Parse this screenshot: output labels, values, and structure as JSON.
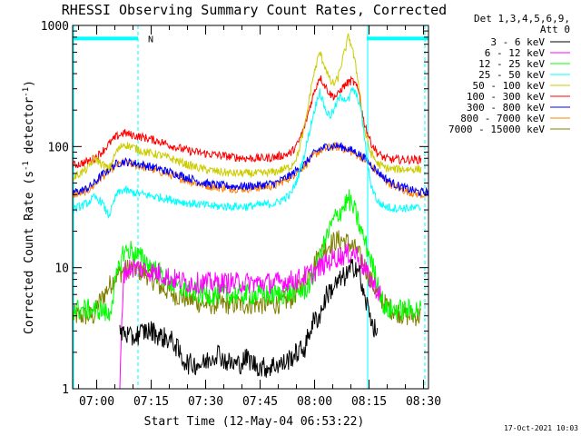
{
  "chart_data": {
    "type": "line",
    "title": "RHESSI Observing Summary Count Rates, Corrected",
    "xlabel": "Start Time (12-May-04 06:53:22)",
    "ylabel_main": "Corrected Count Rate (s",
    "ylabel_sup1": "-1",
    "ylabel_mid": " detector",
    "ylabel_sup2": "-1",
    "ylabel_end": ")",
    "timestamp": "17-Oct-2021 10:03",
    "y_scale": "log",
    "xlim_minutes": [
      0,
      98
    ],
    "ylim": [
      1,
      1000
    ],
    "x_ticks": [
      {
        "label": "07:00",
        "minute": 6.633
      },
      {
        "label": "07:15",
        "minute": 21.633
      },
      {
        "label": "07:30",
        "minute": 36.633
      },
      {
        "label": "07:45",
        "minute": 51.633
      },
      {
        "label": "08:00",
        "minute": 66.633
      },
      {
        "label": "08:15",
        "minute": 81.633
      },
      {
        "label": "08:30",
        "minute": 96.633
      }
    ],
    "y_ticks": [
      {
        "label": "1",
        "value": 1
      },
      {
        "label": "10",
        "value": 10
      },
      {
        "label": "100",
        "value": 100
      },
      {
        "label": "1000",
        "value": 1000
      }
    ],
    "legend_header": [
      "Det 1,3,4,5,6,9,",
      "Att 0"
    ],
    "legend_placement": "right",
    "annotations": {
      "night_bars": [
        [
          0,
          18
        ],
        [
          81,
          98
        ]
      ],
      "night_level": 780,
      "night_color": "#00ffff",
      "saa_marker": "N",
      "saa_marker_minute": 20,
      "dashed_lines_minutes": [
        18,
        97
      ],
      "solid_lines_minutes": [
        0,
        81
      ]
    },
    "series": [
      {
        "name": "3 - 6 keV",
        "color": "#000000",
        "x": [
          13,
          14,
          16,
          18,
          20,
          22,
          24,
          26,
          28,
          30,
          32,
          34,
          36,
          38,
          40,
          42,
          44,
          46,
          48,
          50,
          52,
          54,
          56,
          58,
          60,
          62,
          64,
          66,
          68,
          70,
          72,
          74,
          76,
          77,
          78,
          79,
          80,
          81,
          82,
          83,
          84
        ],
        "y": [
          2.8,
          3.0,
          2.6,
          2.8,
          3.0,
          3.0,
          2.7,
          2.6,
          2.4,
          1.8,
          1.6,
          1.6,
          1.6,
          1.8,
          2.0,
          1.7,
          1.6,
          1.6,
          1.8,
          1.6,
          1.5,
          1.5,
          1.6,
          1.6,
          1.8,
          2.0,
          2.2,
          3.5,
          4.0,
          6.0,
          7.0,
          8.0,
          9.0,
          10.0,
          10.5,
          9.0,
          6.0,
          5.0,
          4.0,
          3.2,
          2.6
        ]
      },
      {
        "name": "6 - 12 keV",
        "color": "#ff00ff",
        "x": [
          13,
          14,
          16,
          18,
          20,
          24,
          28,
          32,
          36,
          40,
          44,
          48,
          52,
          56,
          60,
          62,
          64,
          66,
          68,
          70,
          72,
          74,
          76,
          77,
          78,
          79,
          80,
          82,
          84,
          85
        ],
        "y": [
          1.0,
          9.0,
          10.0,
          10.0,
          9.5,
          9.0,
          8.0,
          7.5,
          7.5,
          7.5,
          7.5,
          7.5,
          7.5,
          7.5,
          7.8,
          8.0,
          8.5,
          9.0,
          10.0,
          11.0,
          12.0,
          12.5,
          13.0,
          13.5,
          13.0,
          12.0,
          10.0,
          8.0,
          6.5,
          6.0
        ]
      },
      {
        "name": "12 - 25 keV",
        "color": "#00ff00",
        "x": [
          0,
          4,
          8,
          10,
          12,
          14,
          16,
          18,
          20,
          22,
          24,
          26,
          28,
          32,
          36,
          40,
          44,
          48,
          52,
          56,
          60,
          64,
          66,
          68,
          70,
          72,
          74,
          76,
          77,
          78,
          79,
          80,
          82,
          84,
          86,
          88,
          92,
          96
        ],
        "y": [
          4.5,
          4.5,
          4.5,
          4.0,
          8.0,
          13.5,
          14.0,
          12.5,
          11.5,
          10.0,
          9.0,
          8.0,
          7.0,
          6.5,
          6.0,
          6.0,
          6.0,
          6.0,
          6.0,
          6.0,
          6.2,
          6.5,
          8.0,
          12.0,
          18.0,
          25.0,
          30.0,
          37.0,
          32.0,
          28.0,
          22.0,
          18.0,
          12.0,
          7.5,
          4.5,
          4.5,
          4.5,
          4.5
        ]
      },
      {
        "name": "25 - 50 keV",
        "color": "#00ffff",
        "x": [
          0,
          2,
          4,
          6,
          8,
          9,
          10,
          11,
          12,
          14,
          16,
          18,
          20,
          24,
          28,
          32,
          36,
          40,
          44,
          48,
          52,
          56,
          60,
          62,
          64,
          66,
          68,
          69,
          70,
          71,
          72,
          73,
          74,
          75,
          76,
          77,
          78,
          79,
          80,
          81,
          82,
          84,
          86,
          88,
          92,
          96
        ],
        "y": [
          30,
          32,
          34,
          38,
          35,
          30,
          27,
          32,
          40,
          44,
          42,
          41,
          40,
          38,
          36,
          34,
          33,
          32,
          32,
          32,
          33,
          34,
          40,
          55,
          90,
          170,
          290,
          230,
          190,
          180,
          200,
          240,
          260,
          250,
          240,
          300,
          270,
          230,
          150,
          80,
          50,
          35,
          32,
          31,
          31,
          31
        ]
      },
      {
        "name": "50 - 100 keV",
        "color": "#cccc00",
        "x": [
          0,
          2,
          4,
          6,
          8,
          10,
          12,
          14,
          16,
          20,
          24,
          28,
          32,
          36,
          40,
          44,
          48,
          52,
          56,
          60,
          62,
          64,
          66,
          68,
          70,
          71,
          72,
          73,
          74,
          75,
          76,
          77,
          78,
          79,
          80,
          82,
          84,
          86,
          88,
          92,
          96
        ],
        "y": [
          55,
          60,
          65,
          80,
          72,
          65,
          90,
          105,
          100,
          90,
          85,
          78,
          70,
          65,
          62,
          60,
          60,
          60,
          62,
          68,
          85,
          150,
          350,
          600,
          420,
          340,
          330,
          360,
          480,
          620,
          820,
          650,
          450,
          300,
          150,
          90,
          72,
          67,
          65,
          65,
          65
        ]
      },
      {
        "name": "100 - 300 keV",
        "color": "#ff0000",
        "x": [
          0,
          2,
          4,
          6,
          8,
          10,
          12,
          14,
          16,
          20,
          24,
          28,
          32,
          36,
          40,
          44,
          48,
          52,
          56,
          60,
          62,
          64,
          66,
          68,
          70,
          71,
          72,
          73,
          74,
          75,
          76,
          77,
          78,
          79,
          80,
          82,
          84,
          86,
          88,
          92,
          96
        ],
        "y": [
          70,
          72,
          75,
          80,
          90,
          105,
          120,
          130,
          125,
          118,
          110,
          100,
          92,
          88,
          85,
          82,
          80,
          80,
          82,
          88,
          105,
          150,
          250,
          380,
          300,
          270,
          260,
          265,
          300,
          320,
          340,
          350,
          320,
          270,
          170,
          110,
          88,
          80,
          78,
          78,
          78
        ]
      },
      {
        "name": "300 - 800 keV",
        "color": "#0000ff",
        "x": [
          0,
          2,
          4,
          6,
          8,
          10,
          12,
          14,
          16,
          20,
          24,
          28,
          32,
          36,
          40,
          44,
          48,
          52,
          56,
          60,
          64,
          66,
          68,
          70,
          72,
          74,
          76,
          78,
          80,
          82,
          84,
          86,
          88,
          90,
          92,
          94,
          96,
          98
        ],
        "y": [
          42,
          43,
          45,
          50,
          58,
          65,
          72,
          75,
          74,
          70,
          65,
          60,
          55,
          50,
          48,
          47,
          47,
          48,
          50,
          58,
          72,
          85,
          95,
          100,
          102,
          100,
          95,
          90,
          82,
          72,
          62,
          55,
          50,
          47,
          45,
          43,
          42,
          42
        ]
      },
      {
        "name": "800 - 7000 keV",
        "color": "#ff8000",
        "x": [
          0,
          2,
          4,
          6,
          8,
          10,
          12,
          14,
          16,
          20,
          24,
          28,
          32,
          36,
          40,
          44,
          48,
          52,
          56,
          60,
          64,
          66,
          68,
          70,
          72,
          74,
          76,
          78,
          80,
          82,
          84,
          86,
          88,
          90,
          92,
          94,
          96,
          98
        ],
        "y": [
          40,
          41,
          43,
          48,
          56,
          62,
          70,
          73,
          72,
          67,
          62,
          57,
          52,
          48,
          46,
          45,
          45,
          46,
          48,
          56,
          70,
          82,
          92,
          97,
          100,
          98,
          92,
          87,
          80,
          70,
          60,
          53,
          48,
          45,
          43,
          41,
          40,
          40
        ]
      },
      {
        "name": "7000 - 15000 keV",
        "color": "#808000",
        "x": [
          0,
          2,
          4,
          6,
          7,
          8,
          10,
          12,
          14,
          16,
          18,
          20,
          22,
          24,
          28,
          32,
          36,
          40,
          44,
          48,
          52,
          56,
          60,
          62,
          64,
          66,
          68,
          70,
          72,
          74,
          76,
          78,
          80,
          82,
          84,
          86,
          88,
          92,
          96
        ],
        "y": [
          4.0,
          4.0,
          4.0,
          4.0,
          5.0,
          5.5,
          7.0,
          8.5,
          9.5,
          10.0,
          9.5,
          9.0,
          8.0,
          7.0,
          6.0,
          5.5,
          5.0,
          5.0,
          5.0,
          5.0,
          5.0,
          5.0,
          5.5,
          6.5,
          8.0,
          10.0,
          13.0,
          15.0,
          16.5,
          17.0,
          16.0,
          14.0,
          11.0,
          8.0,
          6.0,
          5.0,
          4.5,
          4.0,
          4.0
        ]
      }
    ]
  }
}
